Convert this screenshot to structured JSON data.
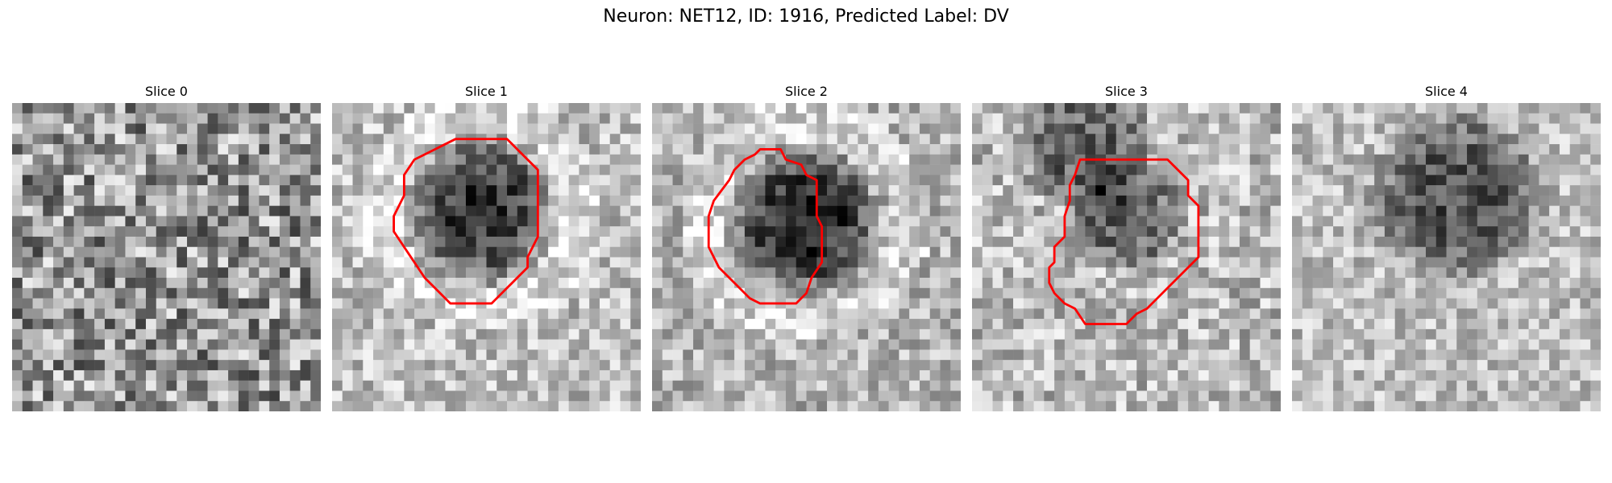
{
  "figure": {
    "title": "Neuron: NET12, ID: 1916, Predicted Label: DV",
    "contour_color": "#ff0000",
    "grid_size": 30
  },
  "panels": [
    {
      "title": "Slice 0",
      "has_contour": false
    },
    {
      "title": "Slice 1",
      "has_contour": true
    },
    {
      "title": "Slice 2",
      "has_contour": true
    },
    {
      "title": "Slice 3",
      "has_contour": true
    },
    {
      "title": "Slice 4",
      "has_contour": false
    }
  ]
}
